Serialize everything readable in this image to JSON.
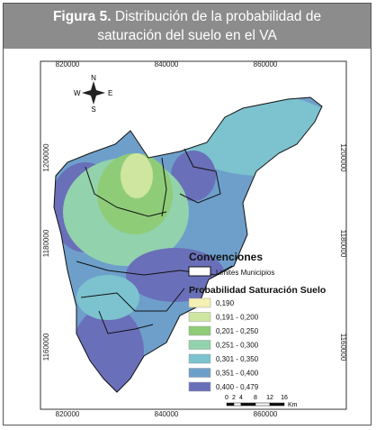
{
  "header": {
    "label": "Figura 5.",
    "title_lines": [
      "Distribución de la probabilidad de",
      "saturación del suelo en el VA"
    ]
  },
  "map": {
    "x_labels": [
      "820000",
      "840000",
      "860000"
    ],
    "y_labels": [
      "1200000",
      "1180000",
      "1160000"
    ],
    "compass": {
      "north": "N",
      "south": "S",
      "east": "E",
      "west": "W"
    },
    "legend": {
      "title": "Convenciones",
      "boundary": "Limites Municipios",
      "classes_title": "Probabilidad Saturación Suelo",
      "classes": [
        {
          "label": "0,190",
          "color": "#f5f0b4"
        },
        {
          "label": "0,191 - 0,200",
          "color": "#cfe6a0"
        },
        {
          "label": "0,201 - 0,250",
          "color": "#8fcc78"
        },
        {
          "label": "0,251 - 0,300",
          "color": "#92d2ac"
        },
        {
          "label": "0,301 - 0,350",
          "color": "#7cc3cf"
        },
        {
          "label": "0,351 - 0,400",
          "color": "#6e9fcb"
        },
        {
          "label": "0,400 - 0,479",
          "color": "#6a6fb9"
        }
      ]
    },
    "scale": {
      "labels": [
        "0",
        "2",
        "4",
        "8",
        "12",
        "16"
      ],
      "unit": "Km"
    }
  }
}
